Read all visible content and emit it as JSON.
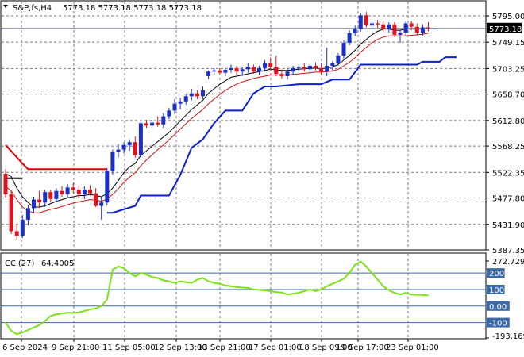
{
  "header": {
    "symbol": "S&P,fs,H4",
    "ohlc": "5773.18 5773.18 5773.18 5773.18"
  },
  "colors": {
    "bull": "#1a2fc8",
    "bear": "#e0141e",
    "ma_black": "#000000",
    "ma_red": "#d01010",
    "trail_red": "#dd0000",
    "trail_blue": "#0a20d0",
    "cci": "#7ee21a",
    "level": "#3a6aa8",
    "price_line": "#708090",
    "grid": "#7a7a7a"
  },
  "chart_data": [
    {
      "type": "candlestick",
      "title": "S&P,fs,H4",
      "ylim": [
        5387.35,
        5810
      ],
      "ytick_labels": [
        "5795.00",
        "5749.15",
        "5703.25",
        "5658.70",
        "5612.80",
        "5568.25",
        "5522.35",
        "5477.80",
        "5431.90",
        "5387.35"
      ],
      "xtick_labels": [
        "6 Sep 2024",
        "9 Sep 21:00",
        "11 Sep 05:00",
        "12 Sep 13:00",
        "13 Sep 21:00",
        "17 Sep 01:00",
        "18 Sep 09:00",
        "19 Sep 17:00",
        "23 Sep 01:00"
      ],
      "last_price_label": "5773.18",
      "ohlc": [
        [
          5520,
          5528,
          5478,
          5484
        ],
        [
          5484,
          5490,
          5415,
          5420
        ],
        [
          5420,
          5432,
          5405,
          5412
        ],
        [
          5412,
          5448,
          5408,
          5440
        ],
        [
          5440,
          5465,
          5430,
          5460
        ],
        [
          5460,
          5480,
          5452,
          5475
        ],
        [
          5475,
          5490,
          5460,
          5470
        ],
        [
          5470,
          5492,
          5462,
          5488
        ],
        [
          5488,
          5492,
          5470,
          5476
        ],
        [
          5476,
          5495,
          5470,
          5490
        ],
        [
          5490,
          5498,
          5480,
          5484
        ],
        [
          5484,
          5502,
          5478,
          5496
        ],
        [
          5496,
          5504,
          5486,
          5492
        ],
        [
          5492,
          5500,
          5478,
          5484
        ],
        [
          5484,
          5498,
          5476,
          5492
        ],
        [
          5492,
          5500,
          5482,
          5486
        ],
        [
          5486,
          5495,
          5462,
          5464
        ],
        [
          5464,
          5480,
          5440,
          5470
        ],
        [
          5470,
          5530,
          5465,
          5525
        ],
        [
          5525,
          5562,
          5518,
          5558
        ],
        [
          5558,
          5572,
          5548,
          5562
        ],
        [
          5562,
          5575,
          5555,
          5570
        ],
        [
          5570,
          5580,
          5560,
          5575
        ],
        [
          5575,
          5585,
          5548,
          5552
        ],
        [
          5552,
          5612,
          5548,
          5608
        ],
        [
          5608,
          5614,
          5600,
          5604
        ],
        [
          5604,
          5614,
          5600,
          5609
        ],
        [
          5609,
          5620,
          5602,
          5606
        ],
        [
          5606,
          5626,
          5600,
          5620
        ],
        [
          5620,
          5635,
          5615,
          5630
        ],
        [
          5630,
          5650,
          5624,
          5642
        ],
        [
          5642,
          5652,
          5632,
          5646
        ],
        [
          5646,
          5660,
          5640,
          5655
        ],
        [
          5655,
          5668,
          5648,
          5660
        ],
        [
          5660,
          5665,
          5650,
          5655
        ],
        [
          5655,
          5672,
          5650,
          5665
        ],
        [
          5690,
          5700,
          5685,
          5698
        ],
        [
          5698,
          5704,
          5692,
          5700
        ],
        [
          5700,
          5704,
          5694,
          5696
        ],
        [
          5696,
          5704,
          5690,
          5701
        ],
        [
          5701,
          5710,
          5696,
          5704
        ],
        [
          5704,
          5708,
          5692,
          5698
        ],
        [
          5698,
          5706,
          5690,
          5702
        ],
        [
          5702,
          5712,
          5696,
          5706
        ],
        [
          5706,
          5710,
          5694,
          5698
        ],
        [
          5698,
          5708,
          5692,
          5704
        ],
        [
          5704,
          5718,
          5698,
          5712
        ],
        [
          5712,
          5722,
          5700,
          5706
        ],
        [
          5706,
          5726,
          5690,
          5694
        ],
        [
          5694,
          5702,
          5686,
          5690
        ],
        [
          5690,
          5704,
          5684,
          5698
        ],
        [
          5698,
          5708,
          5692,
          5704
        ],
        [
          5704,
          5710,
          5698,
          5706
        ],
        [
          5706,
          5712,
          5698,
          5702
        ],
        [
          5702,
          5710,
          5694,
          5708
        ],
        [
          5708,
          5714,
          5700,
          5704
        ],
        [
          5704,
          5712,
          5692,
          5698
        ],
        [
          5698,
          5740,
          5690,
          5708
        ],
        [
          5708,
          5716,
          5700,
          5712
        ],
        [
          5712,
          5730,
          5708,
          5726
        ],
        [
          5726,
          5752,
          5720,
          5748
        ],
        [
          5748,
          5770,
          5744,
          5765
        ],
        [
          5765,
          5778,
          5760,
          5772
        ],
        [
          5772,
          5800,
          5768,
          5796
        ],
        [
          5796,
          5802,
          5775,
          5778
        ],
        [
          5778,
          5786,
          5772,
          5782
        ],
        [
          5782,
          5788,
          5774,
          5780
        ],
        [
          5780,
          5786,
          5768,
          5772
        ],
        [
          5772,
          5784,
          5766,
          5780
        ],
        [
          5780,
          5784,
          5758,
          5762
        ],
        [
          5762,
          5770,
          5748,
          5766
        ],
        [
          5766,
          5786,
          5760,
          5782
        ],
        [
          5782,
          5786,
          5770,
          5776
        ],
        [
          5776,
          5782,
          5762,
          5766
        ],
        [
          5766,
          5780,
          5760,
          5775
        ],
        [
          5775,
          5784,
          5768,
          5773.18
        ],
        [
          5773.18,
          5773.18,
          5773.18,
          5773.18
        ]
      ],
      "ma_black": [
        5520,
        5515,
        5495,
        5480,
        5470,
        5462,
        5462,
        5464,
        5468,
        5472,
        5475,
        5478,
        5480,
        5482,
        5482,
        5484,
        5482,
        5480,
        5485,
        5495,
        5508,
        5522,
        5532,
        5538,
        5552,
        5560,
        5568,
        5576,
        5584,
        5592,
        5602,
        5612,
        5622,
        5632,
        5640,
        5648,
        5660,
        5668,
        5676,
        5682,
        5688,
        5690,
        5692,
        5694,
        5696,
        5698,
        5700,
        5702,
        5701,
        5700,
        5700,
        5701,
        5702,
        5703,
        5704,
        5704,
        5703,
        5704,
        5706,
        5710,
        5718,
        5726,
        5735,
        5746,
        5754,
        5762,
        5768,
        5772,
        5772,
        5770,
        5770,
        5772,
        5772,
        5772,
        5772,
        5773
      ],
      "ma_red": [
        5498,
        5490,
        5475,
        5462,
        5455,
        5452,
        5452,
        5455,
        5458,
        5460,
        5463,
        5466,
        5469,
        5471,
        5473,
        5475,
        5474,
        5472,
        5476,
        5484,
        5494,
        5505,
        5514,
        5522,
        5534,
        5544,
        5553,
        5562,
        5570,
        5579,
        5588,
        5598,
        5607,
        5616,
        5624,
        5632,
        5642,
        5650,
        5658,
        5665,
        5671,
        5676,
        5680,
        5683,
        5686,
        5688,
        5690,
        5692,
        5692,
        5692,
        5692,
        5693,
        5694,
        5695,
        5696,
        5697,
        5697,
        5698,
        5699,
        5702,
        5708,
        5714,
        5722,
        5732,
        5740,
        5748,
        5754,
        5758,
        5760,
        5760,
        5760,
        5760,
        5761,
        5762,
        5763,
        5765
      ],
      "trail_red": [
        [
          0,
          5570
        ],
        [
          3,
          5538
        ],
        [
          4,
          5528
        ],
        [
          18,
          5528
        ]
      ],
      "trail_blue": [
        [
          18,
          5452
        ],
        [
          19,
          5452
        ],
        [
          23,
          5464
        ],
        [
          24,
          5482
        ],
        [
          29,
          5482
        ],
        [
          31,
          5518
        ],
        [
          33,
          5565
        ],
        [
          35,
          5580
        ],
        [
          37,
          5608
        ],
        [
          39,
          5630
        ],
        [
          42,
          5630
        ],
        [
          44,
          5660
        ],
        [
          46,
          5672
        ],
        [
          48,
          5672
        ],
        [
          52,
          5676
        ],
        [
          56,
          5676
        ],
        [
          58,
          5684
        ],
        [
          61,
          5684
        ],
        [
          63,
          5710
        ],
        [
          68,
          5710
        ],
        [
          73,
          5710
        ],
        [
          74,
          5715
        ],
        [
          77,
          5715
        ],
        [
          78,
          5723
        ],
        [
          80,
          5723
        ]
      ],
      "black_line": [
        [
          0,
          5512
        ],
        [
          3,
          5512
        ]
      ]
    },
    {
      "type": "line",
      "title": "CCI(27)",
      "value_label": "64.4005",
      "ylim": [
        -193.1694,
        272.729
      ],
      "ytick_labels": [
        "272.729",
        "200",
        "100",
        "0.00",
        "-100",
        "-193.1694"
      ],
      "levels": [
        200,
        100,
        0,
        -100
      ],
      "values": [
        -100,
        -150,
        -170,
        -160,
        -145,
        -130,
        -115,
        -90,
        -60,
        -50,
        -45,
        -40,
        -42,
        -38,
        -30,
        -20,
        -15,
        0,
        40,
        220,
        240,
        230,
        200,
        180,
        200,
        190,
        175,
        170,
        155,
        150,
        140,
        150,
        145,
        140,
        160,
        170,
        150,
        140,
        135,
        125,
        120,
        115,
        112,
        110,
        100,
        98,
        95,
        90,
        85,
        82,
        70,
        75,
        80,
        90,
        100,
        90,
        100,
        120,
        135,
        150,
        165,
        200,
        250,
        270,
        240,
        200,
        160,
        120,
        95,
        80,
        70,
        80,
        70,
        68,
        67,
        64.4
      ]
    }
  ]
}
